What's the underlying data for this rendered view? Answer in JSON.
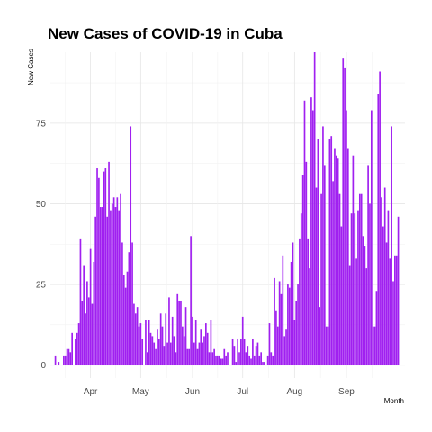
{
  "chart_data": {
    "type": "bar",
    "title": "New Cases of COVID-19 in Cuba",
    "xlabel": "Month",
    "ylabel": "New Cases",
    "start_date": "2020-03-11",
    "xlim_days": [
      -3,
      209
    ],
    "ylim": [
      -4,
      97
    ],
    "y_ticks": [
      0,
      25,
      50,
      75
    ],
    "x_ticks": [
      {
        "label": "Apr",
        "day": 21
      },
      {
        "label": "May",
        "day": 51
      },
      {
        "label": "Jun",
        "day": 82
      },
      {
        "label": "Jul",
        "day": 112
      },
      {
        "label": "Aug",
        "day": 143
      },
      {
        "label": "Sep",
        "day": 174
      }
    ],
    "bar_color": "#a020f0",
    "values": [
      3,
      0,
      1,
      0,
      0,
      3,
      3,
      5,
      5,
      4,
      10,
      0,
      8,
      10,
      13,
      39,
      20,
      31,
      16,
      26,
      21,
      36,
      19,
      32,
      46,
      61,
      58,
      49,
      49,
      60,
      61,
      46,
      63,
      48,
      50,
      52,
      49,
      52,
      48,
      53,
      38,
      28,
      24,
      29,
      35,
      74,
      38,
      19,
      16,
      18,
      12,
      13,
      8,
      0,
      14,
      4,
      14,
      10,
      9,
      7,
      5,
      11,
      8,
      16,
      12,
      6,
      16,
      7,
      21,
      7,
      15,
      9,
      4,
      22,
      20,
      20,
      12,
      9,
      18,
      5,
      5,
      40,
      15,
      7,
      14,
      5,
      7,
      11,
      7,
      9,
      13,
      10,
      4,
      14,
      4,
      5,
      3,
      3,
      3,
      2,
      2,
      5,
      3,
      4,
      0,
      0,
      8,
      6,
      1,
      8,
      4,
      8,
      15,
      8,
      4,
      6,
      3,
      2,
      8,
      3,
      6,
      7,
      3,
      4,
      1,
      1,
      0,
      3,
      13,
      4,
      3,
      27,
      17,
      12,
      26,
      22,
      34,
      9,
      11,
      25,
      24,
      32,
      38,
      14,
      20,
      25,
      39,
      47,
      59,
      82,
      63,
      39,
      30,
      83,
      79,
      97,
      55,
      70,
      18,
      53,
      74,
      62,
      12,
      12,
      70,
      71,
      57,
      67,
      65,
      64,
      53,
      43,
      95,
      92,
      79,
      67,
      31,
      47,
      65,
      47,
      33,
      48,
      53,
      53,
      40,
      37,
      30,
      62,
      50,
      79,
      12,
      12,
      23,
      84,
      91,
      52,
      43,
      55,
      38,
      48,
      33,
      74,
      26,
      34,
      34,
      46
    ],
    "y_scale_factor": 0.77
  }
}
